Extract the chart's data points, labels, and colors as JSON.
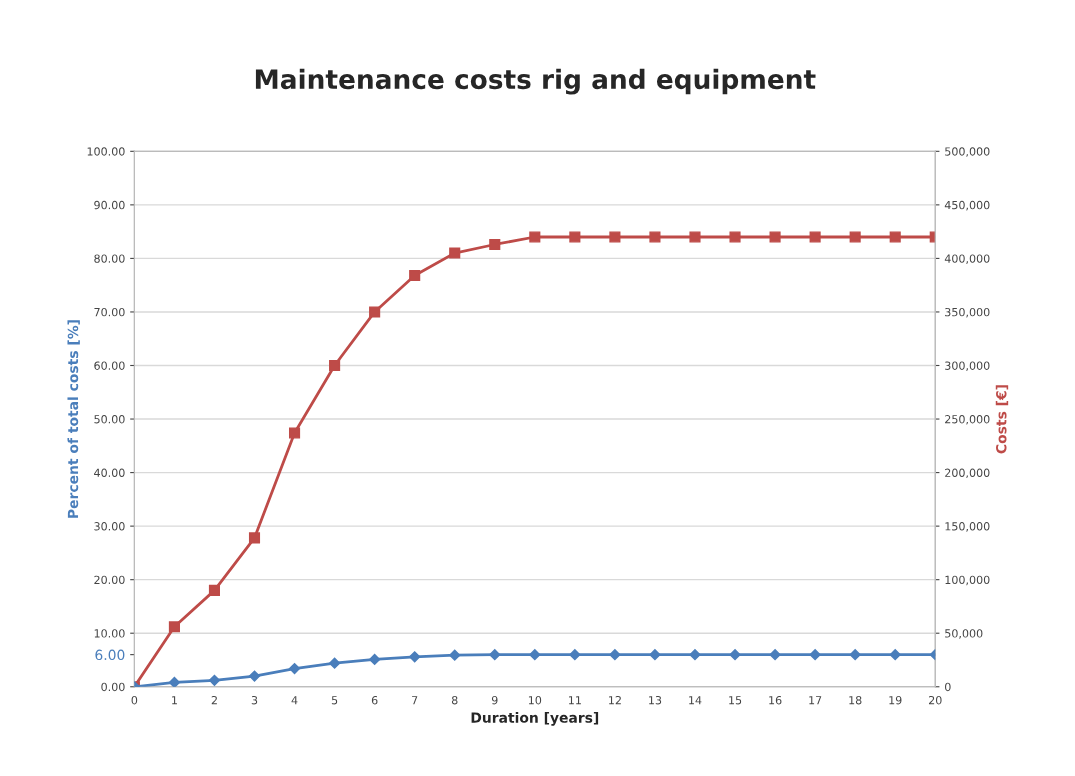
{
  "chart_data": {
    "type": "line",
    "title": "Maintenance costs rig and equipment",
    "xlabel": "Duration [years]",
    "ylabel": "Percent of total costs [%]",
    "y2label": "Costs [€]",
    "x": [
      0,
      1,
      2,
      3,
      4,
      5,
      6,
      7,
      8,
      9,
      10,
      11,
      12,
      13,
      14,
      15,
      16,
      17,
      18,
      19,
      20
    ],
    "series": [
      {
        "color": "#4a7ebb",
        "marker": "diamond",
        "values": [
          0,
          0.8,
          1.2,
          2.0,
          3.4,
          4.4,
          5.1,
          5.6,
          5.9,
          6.0,
          6.0,
          6.0,
          6.0,
          6.0,
          6.0,
          6.0,
          6.0,
          6.0,
          6.0,
          6.0,
          6.0
        ]
      },
      {
        "color": "#be4b48",
        "marker": "square",
        "axis": "y2",
        "values": [
          0,
          56000,
          90000,
          139000,
          237000,
          300000,
          350000,
          384000,
          405000,
          413000,
          420000,
          420000,
          420000,
          420000,
          420000,
          420000,
          420000,
          420000,
          420000,
          420000,
          420000
        ]
      }
    ],
    "xlim": [
      0,
      20
    ],
    "xticks": [
      0,
      1,
      2,
      3,
      4,
      5,
      6,
      7,
      8,
      9,
      10,
      11,
      12,
      13,
      14,
      15,
      16,
      17,
      18,
      19,
      20
    ],
    "ylim": [
      0,
      100
    ],
    "yticks": [
      {
        "value": 0,
        "label": "0.00"
      },
      {
        "value": 6,
        "label": "6.00"
      },
      {
        "value": 10,
        "label": "10.00"
      },
      {
        "value": 20,
        "label": "20.00"
      },
      {
        "value": 30,
        "label": "30.00"
      },
      {
        "value": 40,
        "label": "40.00"
      },
      {
        "value": 50,
        "label": "50.00"
      },
      {
        "value": 60,
        "label": "60.00"
      },
      {
        "value": 70,
        "label": "70.00"
      },
      {
        "value": 80,
        "label": "80.00"
      },
      {
        "value": 90,
        "label": "90.00"
      },
      {
        "value": 100,
        "label": "100.00"
      }
    ],
    "y2lim": [
      0,
      500000
    ],
    "y2ticks": [
      0,
      {
        "value": 50000,
        "label": "50,000"
      },
      {
        "value": 100000,
        "label": "100,000"
      },
      {
        "value": 150000,
        "label": "150,000"
      },
      {
        "value": 200000,
        "label": "200,000"
      },
      {
        "value": 250000,
        "label": "250,000"
      },
      {
        "value": 300000,
        "label": "300,000"
      },
      {
        "value": 350000,
        "label": "350,000"
      },
      {
        "value": 400000,
        "label": "400,000"
      },
      {
        "value": 450000,
        "label": "450,000"
      },
      {
        "value": 500000,
        "label": "500,000"
      }
    ],
    "grid": "y",
    "legend": false
  }
}
